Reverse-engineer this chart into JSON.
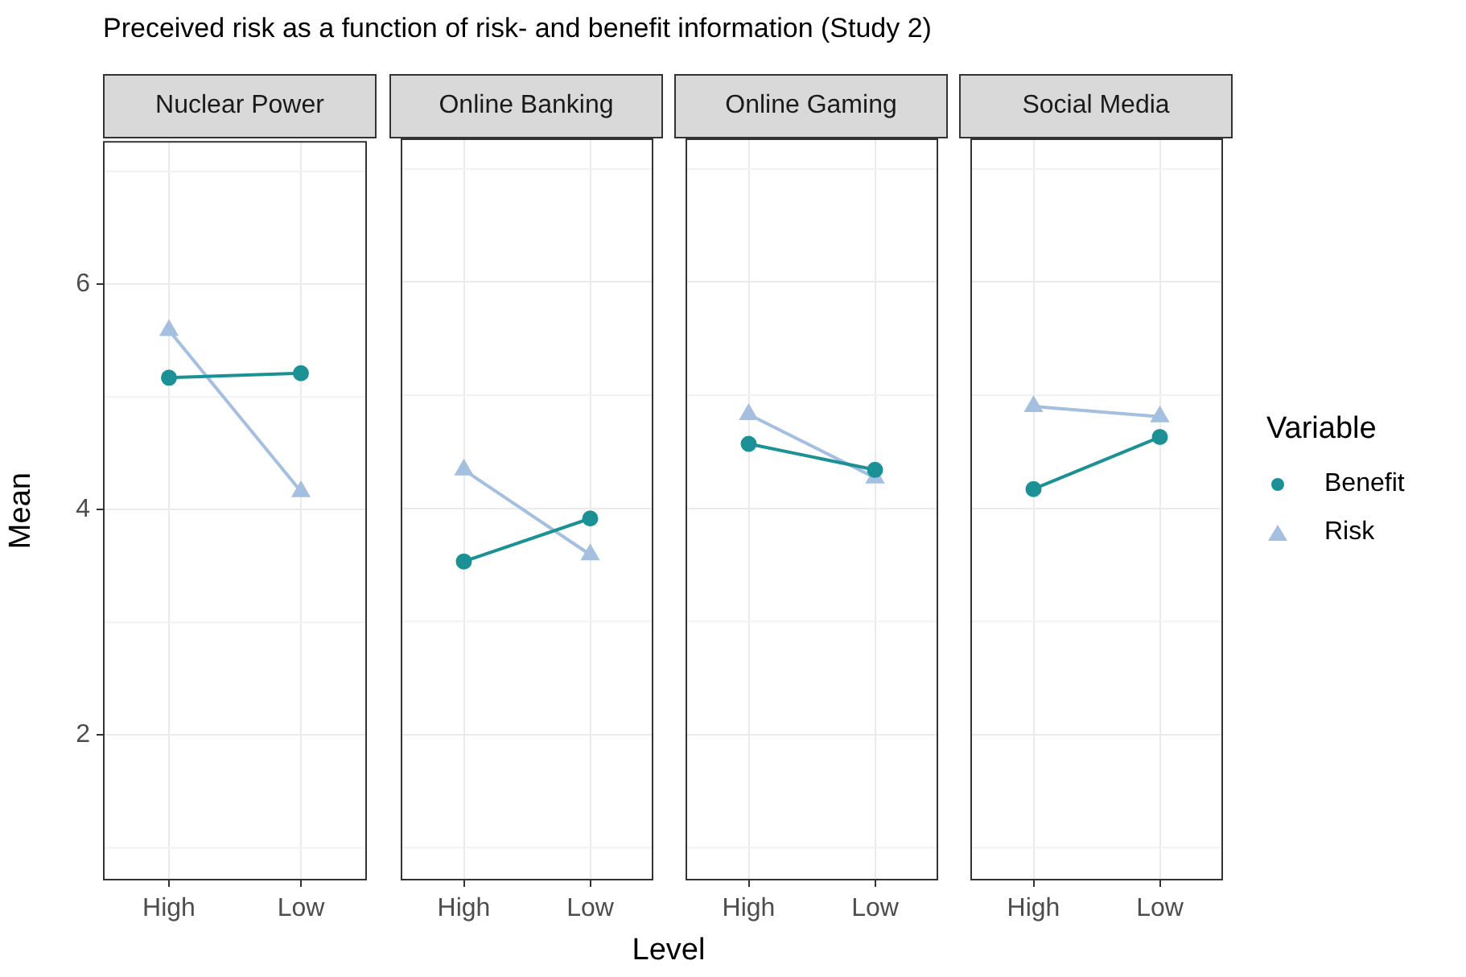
{
  "chart_data": [
    {
      "type": "line",
      "title": "Nuclear Power",
      "annotations": [
        "Preceived risk as a function of risk- and benefit information (Study 2)"
      ],
      "ylabel": "Mean",
      "categories": [
        "High",
        "Low"
      ],
      "series": [
        {
          "color": "#1b9196",
          "marker": "circle",
          "values": [
            5.17,
            5.21
          ]
        },
        {
          "color": "#a5bfe0",
          "marker": "triangle",
          "values": [
            5.59,
            4.16
          ]
        }
      ],
      "ylim": [
        0.71,
        7.27
      ],
      "yticks": [
        2,
        4,
        6
      ],
      "grid": true
    },
    {
      "type": "line",
      "title": "Online Banking",
      "xlabel": "Level",
      "categories": [
        "High",
        "Low"
      ],
      "series": [
        {
          "color": "#1b9196",
          "marker": "circle",
          "values": [
            3.53,
            3.91
          ]
        },
        {
          "color": "#a5bfe0",
          "marker": "triangle",
          "values": [
            4.34,
            3.59
          ]
        }
      ],
      "ylim": [
        0.71,
        7.27
      ],
      "yticks": [
        2,
        4,
        6
      ],
      "grid": true,
      "tick_labels": "x"
    },
    {
      "type": "line",
      "title": "Online Gaming",
      "categories": [
        "High",
        "Low"
      ],
      "series": [
        {
          "color": "#1b9196",
          "marker": "circle",
          "values": [
            4.57,
            4.34
          ]
        },
        {
          "color": "#a5bfe0",
          "marker": "triangle",
          "values": [
            4.83,
            4.27
          ]
        }
      ],
      "ylim": [
        0.71,
        7.27
      ],
      "yticks": [
        2,
        4,
        6
      ],
      "grid": true,
      "tick_labels": "x"
    },
    {
      "type": "line",
      "title": "Social Media",
      "categories": [
        "High",
        "Low"
      ],
      "legend": "right",
      "legend_title": "Variable",
      "series": [
        {
          "name": "Benefit",
          "color": "#1b9196",
          "marker": "circle",
          "values": [
            4.17,
            4.63
          ]
        },
        {
          "name": "Risk",
          "color": "#a5bfe0",
          "marker": "triangle",
          "values": [
            4.9,
            4.81
          ]
        }
      ],
      "ylim": [
        0.71,
        7.27
      ],
      "yticks": [
        2,
        4,
        6
      ],
      "grid": true,
      "tick_labels": "x"
    }
  ]
}
